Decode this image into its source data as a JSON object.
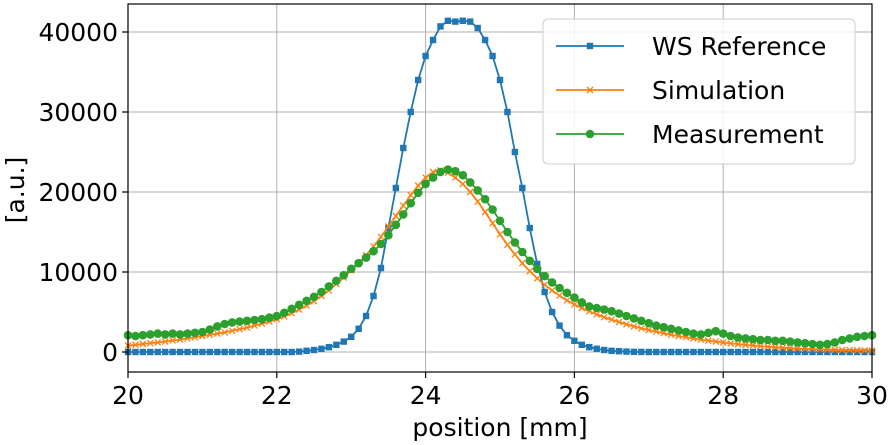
{
  "chart_data": {
    "type": "line",
    "title": "",
    "xlabel": "position [mm]",
    "ylabel": "[a.u.]",
    "xlim": [
      20,
      30
    ],
    "ylim": [
      -2500,
      43500
    ],
    "xticks": [
      20,
      22,
      24,
      26,
      28,
      30
    ],
    "yticks": [
      0,
      10000,
      20000,
      30000,
      40000
    ],
    "grid": true,
    "legend_position": "top-right",
    "series": [
      {
        "name": "WS Reference",
        "color": "#1f77b4",
        "marker": "square",
        "x": [
          20.0,
          20.1,
          20.2,
          20.3,
          20.4,
          20.5,
          20.6,
          20.7,
          20.8,
          20.9,
          21.0,
          21.1,
          21.2,
          21.3,
          21.4,
          21.5,
          21.6,
          21.7,
          21.8,
          21.9,
          22.0,
          22.1,
          22.2,
          22.3,
          22.4,
          22.5,
          22.6,
          22.7,
          22.8,
          22.9,
          23.0,
          23.1,
          23.2,
          23.3,
          23.4,
          23.5,
          23.6,
          23.7,
          23.8,
          23.9,
          24.0,
          24.1,
          24.2,
          24.3,
          24.4,
          24.5,
          24.6,
          24.7,
          24.8,
          24.9,
          25.0,
          25.1,
          25.2,
          25.3,
          25.4,
          25.5,
          25.6,
          25.7,
          25.8,
          25.9,
          26.0,
          26.1,
          26.2,
          26.3,
          26.4,
          26.5,
          26.6,
          26.7,
          26.8,
          26.9,
          27.0,
          27.1,
          27.2,
          27.3,
          27.4,
          27.5,
          27.6,
          27.7,
          27.8,
          27.9,
          28.0,
          28.1,
          28.2,
          28.3,
          28.4,
          28.5,
          28.6,
          28.7,
          28.8,
          28.9,
          29.0,
          29.1,
          29.2,
          29.3,
          29.4,
          29.5,
          29.6,
          29.7,
          29.8,
          29.9,
          30.0
        ],
        "values": [
          0,
          0,
          0,
          0,
          0,
          0,
          0,
          0,
          0,
          0,
          0,
          0,
          0,
          0,
          0,
          0,
          0,
          0,
          0,
          0,
          0,
          0,
          0,
          50,
          150,
          250,
          400,
          600,
          900,
          1300,
          1900,
          2900,
          4500,
          7000,
          10500,
          15500,
          20500,
          25500,
          30000,
          34000,
          37000,
          39000,
          40700,
          41400,
          41300,
          41400,
          41300,
          40500,
          39000,
          37000,
          34000,
          30000,
          25000,
          20500,
          15500,
          11000,
          7500,
          5000,
          3300,
          2100,
          1400,
          900,
          600,
          400,
          250,
          150,
          100,
          50,
          20,
          10,
          0,
          0,
          0,
          0,
          0,
          0,
          0,
          0,
          0,
          0,
          0,
          0,
          0,
          0,
          0,
          0,
          0,
          0,
          0,
          0,
          0,
          0,
          0,
          0,
          0,
          0,
          0,
          0,
          0,
          0,
          0
        ]
      },
      {
        "name": "Simulation",
        "color": "#ff7f0e",
        "marker": "x",
        "x": [
          20.0,
          20.1,
          20.2,
          20.3,
          20.4,
          20.5,
          20.6,
          20.7,
          20.8,
          20.9,
          21.0,
          21.1,
          21.2,
          21.3,
          21.4,
          21.5,
          21.6,
          21.7,
          21.8,
          21.9,
          22.0,
          22.1,
          22.2,
          22.3,
          22.4,
          22.5,
          22.6,
          22.7,
          22.8,
          22.9,
          23.0,
          23.1,
          23.2,
          23.3,
          23.4,
          23.5,
          23.6,
          23.7,
          23.8,
          23.9,
          24.0,
          24.1,
          24.2,
          24.3,
          24.4,
          24.5,
          24.6,
          24.7,
          24.8,
          24.9,
          25.0,
          25.1,
          25.2,
          25.3,
          25.4,
          25.5,
          25.6,
          25.7,
          25.8,
          25.9,
          26.0,
          26.1,
          26.2,
          26.3,
          26.4,
          26.5,
          26.6,
          26.7,
          26.8,
          26.9,
          27.0,
          27.1,
          27.2,
          27.3,
          27.4,
          27.5,
          27.6,
          27.7,
          27.8,
          27.9,
          28.0,
          28.1,
          28.2,
          28.3,
          28.4,
          28.5,
          28.6,
          28.7,
          28.8,
          28.9,
          29.0,
          29.1,
          29.2,
          29.3,
          29.4,
          29.5,
          29.6,
          29.7,
          29.8,
          29.9,
          30.0
        ],
        "values": [
          800,
          900,
          1000,
          1100,
          1200,
          1300,
          1450,
          1550,
          1700,
          1850,
          2000,
          2150,
          2300,
          2450,
          2650,
          2850,
          3050,
          3300,
          3550,
          3800,
          4100,
          4450,
          4850,
          5300,
          5800,
          6350,
          7000,
          7700,
          8500,
          9300,
          10200,
          11100,
          12100,
          13200,
          14400,
          15700,
          17000,
          18300,
          19600,
          20800,
          21800,
          22500,
          22700,
          22400,
          21800,
          21000,
          20000,
          18800,
          17500,
          16100,
          14700,
          13400,
          12200,
          11100,
          10100,
          9200,
          8400,
          7700,
          7050,
          6450,
          5950,
          5500,
          5100,
          4700,
          4350,
          4050,
          3750,
          3450,
          3200,
          2950,
          2750,
          2550,
          2350,
          2150,
          2000,
          1850,
          1700,
          1550,
          1420,
          1300,
          1180,
          1080,
          980,
          890,
          810,
          730,
          660,
          600,
          540,
          490,
          440,
          400,
          370,
          340,
          310,
          280,
          260,
          240,
          220,
          200,
          180
        ]
      },
      {
        "name": "Measurement",
        "color": "#2ca02c",
        "marker": "circle",
        "x": [
          20.0,
          20.1,
          20.2,
          20.3,
          20.4,
          20.5,
          20.6,
          20.7,
          20.8,
          20.9,
          21.0,
          21.1,
          21.2,
          21.3,
          21.4,
          21.5,
          21.6,
          21.7,
          21.8,
          21.9,
          22.0,
          22.1,
          22.2,
          22.3,
          22.4,
          22.5,
          22.6,
          22.7,
          22.8,
          22.9,
          23.0,
          23.1,
          23.2,
          23.3,
          23.4,
          23.5,
          23.6,
          23.7,
          23.8,
          23.9,
          24.0,
          24.1,
          24.2,
          24.3,
          24.4,
          24.5,
          24.6,
          24.7,
          24.8,
          24.9,
          25.0,
          25.1,
          25.2,
          25.3,
          25.4,
          25.5,
          25.6,
          25.7,
          25.8,
          25.9,
          26.0,
          26.1,
          26.2,
          26.3,
          26.4,
          26.5,
          26.6,
          26.7,
          26.8,
          26.9,
          27.0,
          27.1,
          27.2,
          27.3,
          27.4,
          27.5,
          27.6,
          27.7,
          27.8,
          27.9,
          28.0,
          28.1,
          28.2,
          28.3,
          28.4,
          28.5,
          28.6,
          28.7,
          28.8,
          28.9,
          29.0,
          29.1,
          29.2,
          29.3,
          29.4,
          29.5,
          29.6,
          29.7,
          29.8,
          29.9,
          30.0
        ],
        "values": [
          2100,
          2000,
          2100,
          2200,
          2300,
          2200,
          2300,
          2200,
          2300,
          2400,
          2500,
          2800,
          3200,
          3500,
          3700,
          3800,
          3900,
          4000,
          4100,
          4300,
          4500,
          4900,
          5400,
          5900,
          6400,
          6900,
          7500,
          8200,
          8900,
          9600,
          10400,
          11100,
          11800,
          12600,
          13500,
          14600,
          15900,
          17200,
          18600,
          19900,
          21000,
          21800,
          22500,
          22800,
          22600,
          22100,
          21200,
          20200,
          19100,
          17800,
          16400,
          15000,
          13700,
          12500,
          11400,
          10400,
          9500,
          8700,
          8000,
          7400,
          6800,
          6200,
          5700,
          5500,
          5300,
          5100,
          4800,
          4500,
          4200,
          3900,
          3600,
          3300,
          3100,
          2900,
          2700,
          2500,
          2300,
          2200,
          2400,
          2600,
          2300,
          2000,
          1800,
          1700,
          1600,
          1500,
          1500,
          1400,
          1400,
          1300,
          1200,
          1100,
          1000,
          900,
          1000,
          1200,
          1500,
          1700,
          1900,
          2000,
          2100
        ]
      }
    ]
  }
}
